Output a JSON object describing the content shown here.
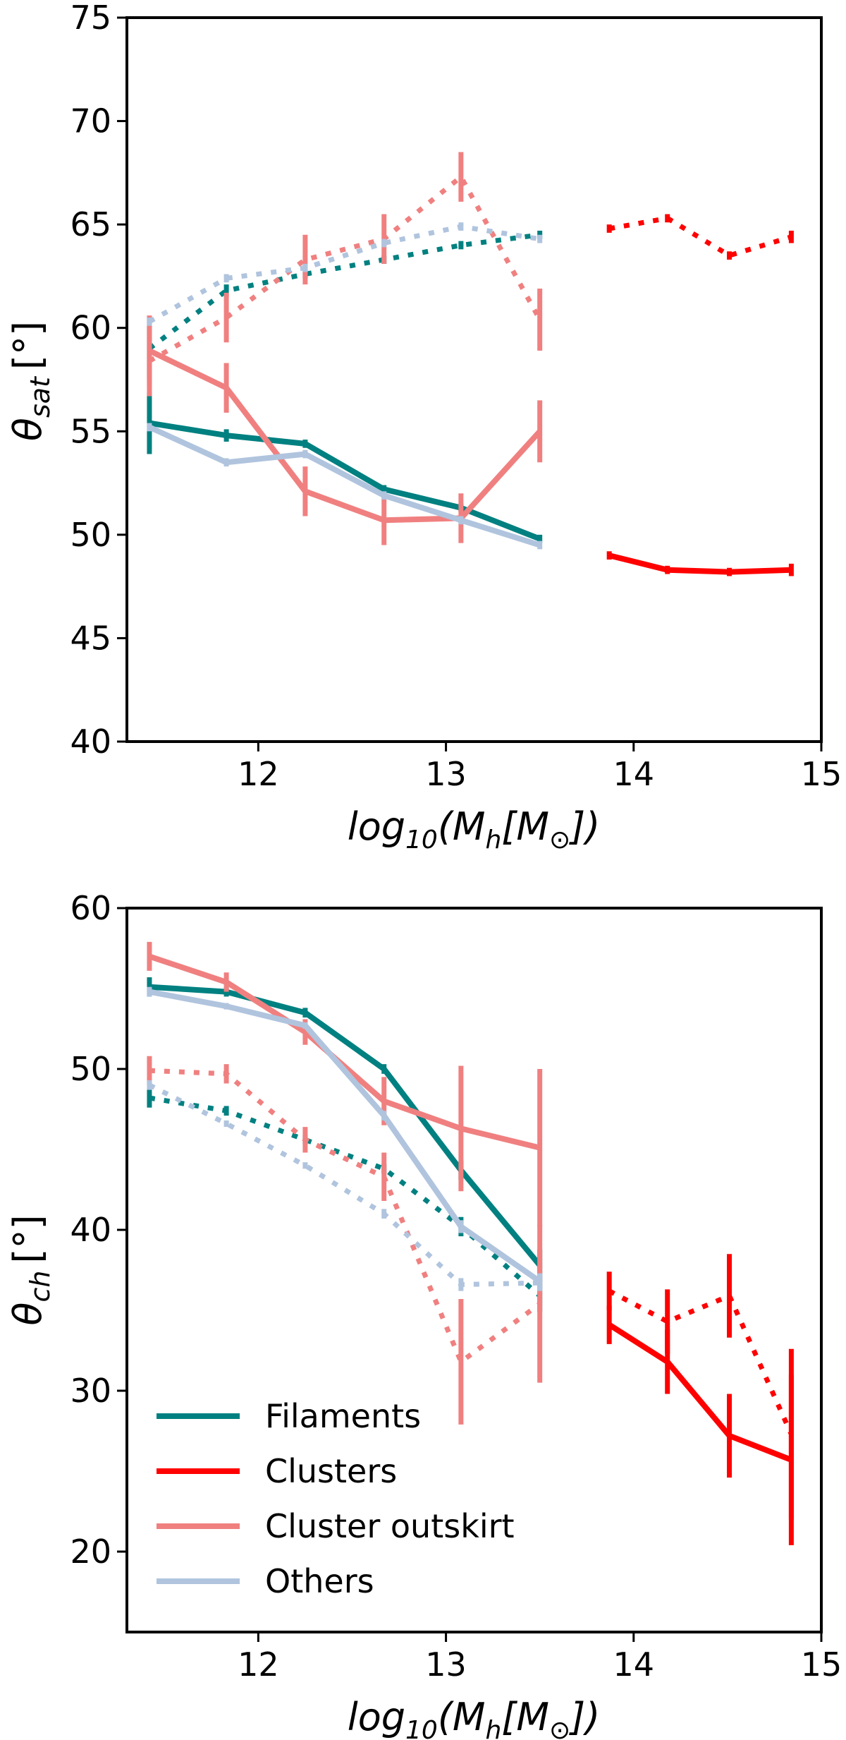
{
  "colors": {
    "Filaments": "#008080",
    "Clusters": "#ff0000",
    "Cluster outskirt": "#f08080",
    "Others": "#b0c4de"
  },
  "legend": {
    "items": [
      "Filaments",
      "Clusters",
      "Cluster outskirt",
      "Others"
    ]
  },
  "chart_data": [
    {
      "type": "line",
      "id": "top",
      "ylabel_main": "θ",
      "ylabel_sub": "sat",
      "ylabel_unit": "[°]",
      "xlabel_main": "log",
      "xlabel_sub": "10",
      "xlabel_rest": "(M",
      "xlabel_sub2": "h",
      "xlabel_rest2": "[M",
      "xlabel_sub3": "⊙",
      "xlabel_end": "])",
      "xlim": [
        11.3,
        15.0
      ],
      "ylim": [
        40,
        75
      ],
      "xticks": [
        "12",
        "13",
        "14",
        "15"
      ],
      "yticks": [
        "40",
        "45",
        "50",
        "55",
        "60",
        "65",
        "70",
        "75"
      ],
      "series": [
        {
          "name": "Filaments",
          "style": "solid",
          "x": [
            11.42,
            11.83,
            12.25,
            12.67,
            13.08,
            13.5
          ],
          "y": [
            55.4,
            54.8,
            54.4,
            52.2,
            51.3,
            49.8
          ],
          "err": [
            1.5,
            0.3,
            0.2,
            0.2,
            0.2,
            0.2
          ]
        },
        {
          "name": "Filaments",
          "style": "dotted",
          "x": [
            11.42,
            11.83,
            12.25,
            12.67,
            13.08,
            13.5
          ],
          "y": [
            59,
            61.8,
            62.6,
            63.3,
            64,
            64.5
          ],
          "err": [
            1.5,
            0.3,
            0.2,
            0.2,
            0.2,
            0.2
          ]
        },
        {
          "name": "Clusters",
          "style": "solid",
          "x": [
            13.87,
            14.18,
            14.51,
            14.84
          ],
          "y": [
            49,
            48.3,
            48.2,
            48.3
          ],
          "err": [
            0.2,
            0.2,
            0.2,
            0.3
          ]
        },
        {
          "name": "Clusters",
          "style": "dotted",
          "x": [
            13.87,
            14.18,
            14.51,
            14.84
          ],
          "y": [
            64.8,
            65.3,
            63.5,
            64.4
          ],
          "err": [
            0.2,
            0.2,
            0.2,
            0.3
          ]
        },
        {
          "name": "Cluster outskirt",
          "style": "solid",
          "x": [
            11.42,
            11.83,
            12.25,
            12.67,
            13.08,
            13.5
          ],
          "y": [
            58.9,
            57.1,
            52.1,
            50.7,
            50.8,
            55
          ],
          "err": [
            1.7,
            1.2,
            1.2,
            1.2,
            1.2,
            1.5
          ]
        },
        {
          "name": "Cluster outskirt",
          "style": "dotted",
          "x": [
            11.42,
            11.83,
            12.25,
            12.67,
            13.08,
            13.5
          ],
          "y": [
            58.4,
            60.5,
            63.3,
            64.3,
            67.3,
            60.4
          ],
          "err": [
            1.7,
            1.2,
            1.2,
            1.2,
            1.2,
            1.5
          ]
        },
        {
          "name": "Others",
          "style": "solid",
          "x": [
            11.42,
            11.83,
            12.25,
            12.67,
            13.08,
            13.5
          ],
          "y": [
            55.2,
            53.5,
            53.9,
            51.9,
            50.7,
            49.5
          ],
          "err": [
            0.2,
            0.2,
            0.2,
            0.2,
            0.2,
            0.2
          ]
        },
        {
          "name": "Others",
          "style": "dotted",
          "x": [
            11.42,
            11.83,
            12.25,
            12.67,
            13.08,
            13.5
          ],
          "y": [
            60.3,
            62.4,
            62.9,
            64.1,
            64.9,
            64.3
          ],
          "err": [
            0.2,
            0.2,
            0.2,
            0.2,
            0.2,
            0.2
          ]
        }
      ]
    },
    {
      "type": "line",
      "id": "bottom",
      "ylabel_main": "θ",
      "ylabel_sub": "ch",
      "ylabel_unit": "[°]",
      "xlabel_main": "log",
      "xlabel_sub": "10",
      "xlabel_rest": "(M",
      "xlabel_sub2": "h",
      "xlabel_rest2": "[M",
      "xlabel_sub3": "⊙",
      "xlabel_end": "])",
      "xlim": [
        11.3,
        15.0
      ],
      "ylim": [
        15,
        60
      ],
      "xticks": [
        "12",
        "13",
        "14",
        "15"
      ],
      "yticks": [
        "20",
        "30",
        "40",
        "50",
        "60"
      ],
      "series": [
        {
          "name": "Filaments",
          "style": "solid",
          "x": [
            11.42,
            11.83,
            12.25,
            12.67,
            13.08,
            13.5
          ],
          "y": [
            55.1,
            54.8,
            53.5,
            50,
            43.7,
            37.8
          ],
          "err": [
            0.6,
            0.3,
            0.3,
            0.3,
            0.6,
            1
          ]
        },
        {
          "name": "Filaments",
          "style": "dotted",
          "x": [
            11.42,
            11.83,
            12.25,
            12.67,
            13.08,
            13.5
          ],
          "y": [
            48.2,
            47.4,
            45.6,
            43.8,
            40.2,
            35.9
          ],
          "err": [
            0.6,
            0.3,
            0.3,
            0.3,
            0.6,
            1
          ]
        },
        {
          "name": "Clusters",
          "style": "solid",
          "x": [
            13.87,
            14.18,
            14.51,
            14.84
          ],
          "y": [
            34.1,
            31.8,
            27.2,
            25.7
          ],
          "err": [
            1.2,
            2,
            2.6,
            5.3
          ]
        },
        {
          "name": "Clusters",
          "style": "dotted",
          "x": [
            13.87,
            14.18,
            14.51,
            14.84
          ],
          "y": [
            36.2,
            34.3,
            35.9,
            27.3
          ],
          "err": [
            1.2,
            2,
            2.6,
            5.3
          ]
        },
        {
          "name": "Cluster outskirt",
          "style": "solid",
          "x": [
            11.42,
            11.83,
            12.25,
            12.67,
            13.08,
            13.5
          ],
          "y": [
            57,
            55.4,
            52.3,
            48,
            46.3,
            45.1
          ],
          "err": [
            0.9,
            0.6,
            0.8,
            1.5,
            3.9,
            4.9
          ]
        },
        {
          "name": "Cluster outskirt",
          "style": "dotted",
          "x": [
            11.42,
            11.83,
            12.25,
            12.67,
            13.08,
            13.5
          ],
          "y": [
            49.9,
            49.7,
            45.6,
            43.3,
            31.8,
            35.4
          ],
          "err": [
            0.9,
            0.6,
            0.8,
            1.5,
            3.9,
            4.9
          ]
        },
        {
          "name": "Others",
          "style": "solid",
          "x": [
            11.42,
            11.83,
            12.25,
            12.67,
            13.08,
            13.5
          ],
          "y": [
            54.8,
            53.9,
            52.7,
            47.1,
            40.2,
            36.8
          ],
          "err": [
            0.3,
            0.2,
            0.2,
            0.3,
            0.4,
            0.5
          ]
        },
        {
          "name": "Others",
          "style": "dotted",
          "x": [
            11.42,
            11.83,
            12.25,
            12.67,
            13.08,
            13.5
          ],
          "y": [
            49,
            46.6,
            44,
            41,
            36.6,
            36.7
          ],
          "err": [
            0.3,
            0.2,
            0.2,
            0.3,
            0.4,
            0.5
          ]
        }
      ]
    }
  ]
}
